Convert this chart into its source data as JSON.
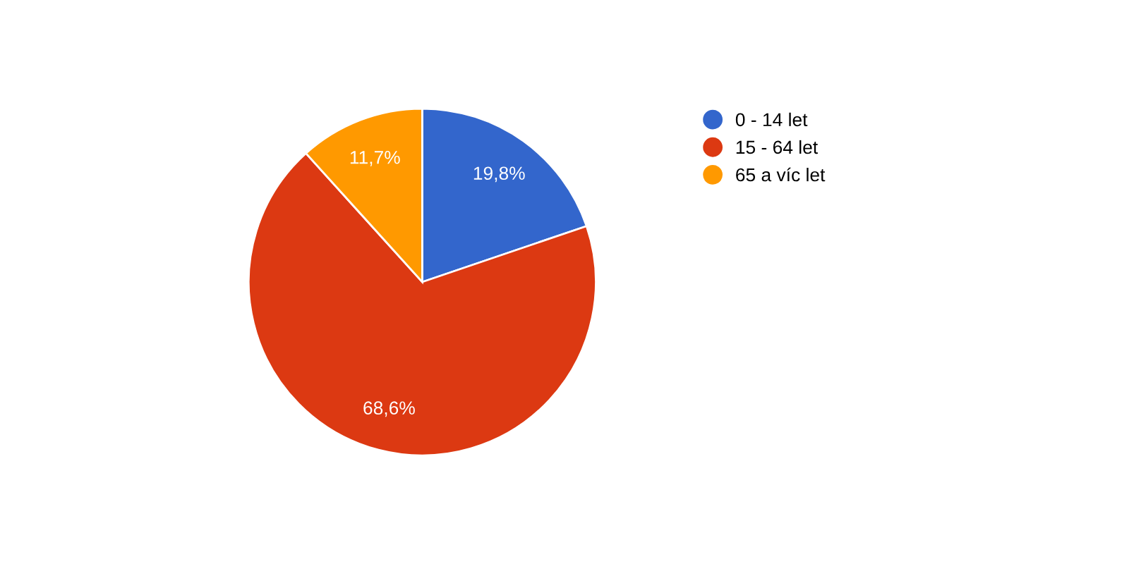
{
  "chart_data": {
    "type": "pie",
    "categories": [
      "0 - 14 let",
      "15 - 64 let",
      "65 a víc let"
    ],
    "values": [
      19.8,
      68.6,
      11.7
    ],
    "colors": [
      "#3366cc",
      "#dc3912",
      "#ff9900"
    ],
    "value_labels": [
      "19,8%",
      "68,6%",
      "11,7%"
    ],
    "legend": "right"
  }
}
